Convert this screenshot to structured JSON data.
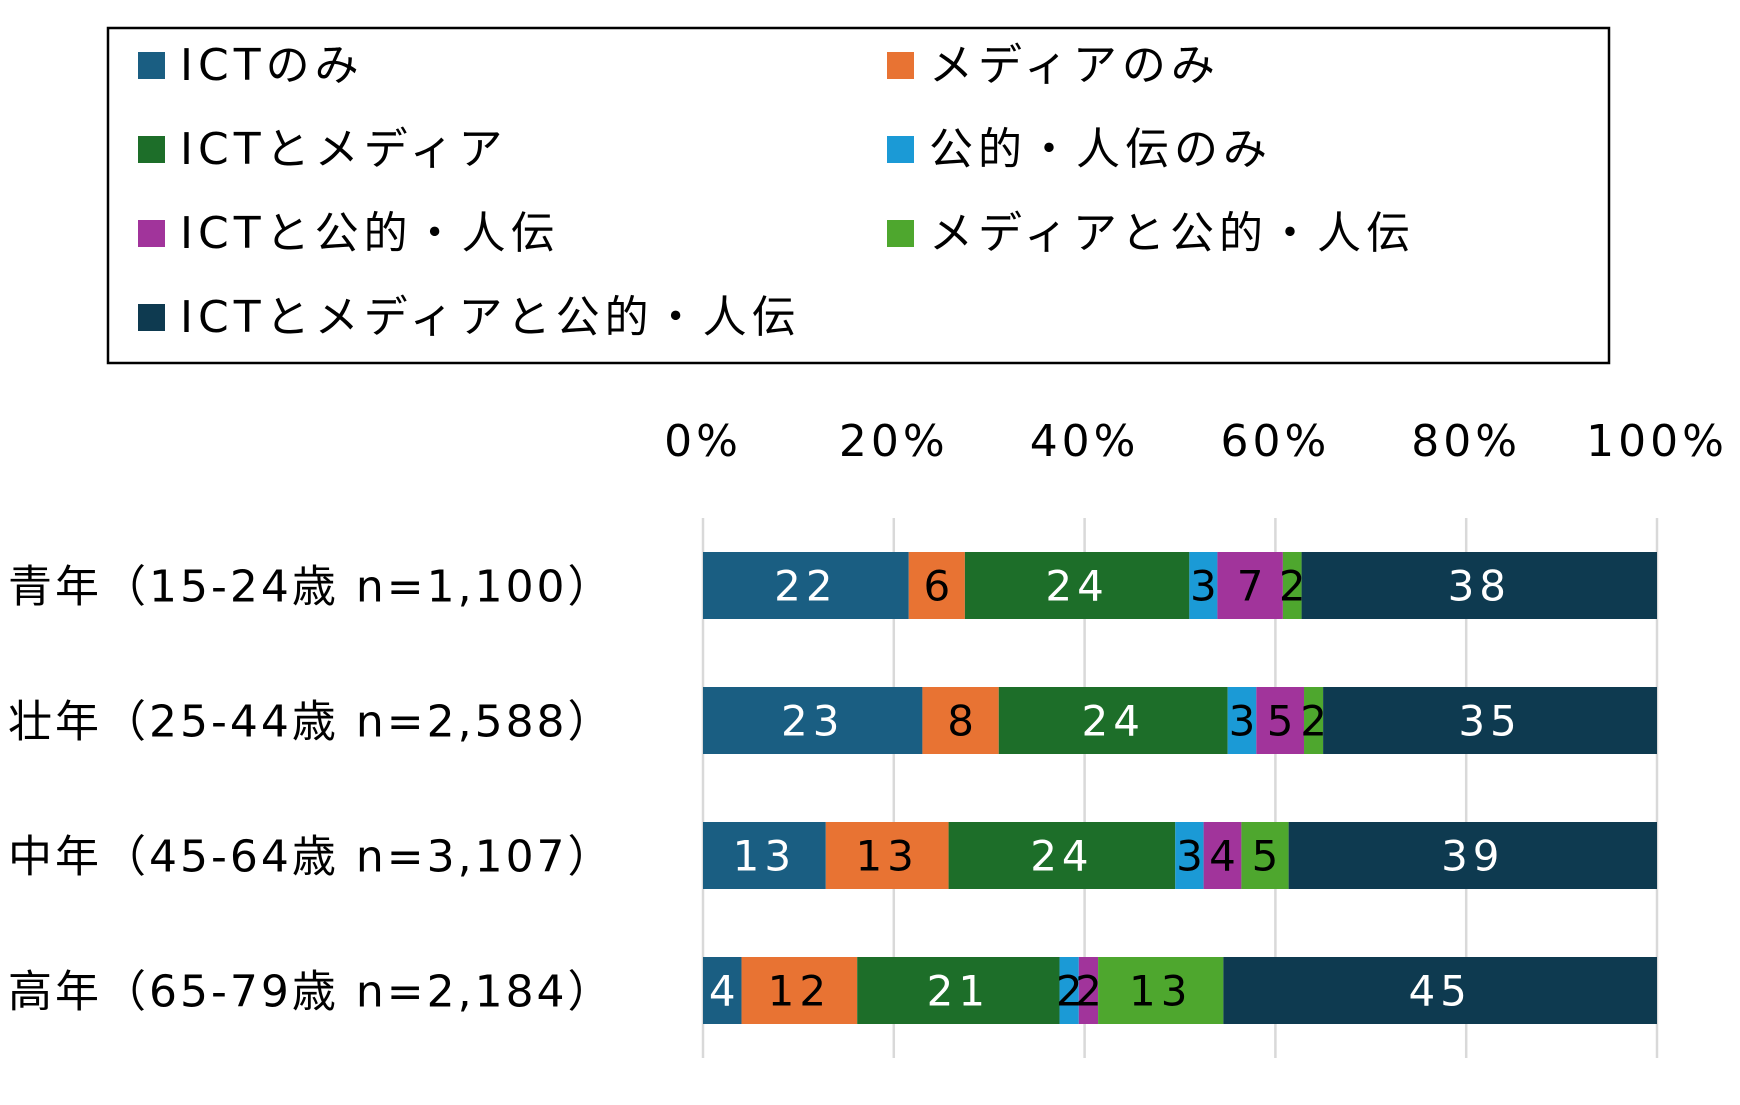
{
  "chart_data": {
    "type": "bar",
    "orientation": "horizontal",
    "stacked": "percent",
    "title": "",
    "xlabel": "",
    "ylabel": "",
    "xlim": [
      0,
      100
    ],
    "x_tick_labels": [
      "0%",
      "20%",
      "40%",
      "60%",
      "80%",
      "100%"
    ],
    "grid": true,
    "legend_position": "top",
    "categories": [
      "青年（15-24歳 n=1,100）",
      "壮年（25-44歳 n=2,588）",
      "中年（45-64歳 n=3,107）",
      "高年（65-79歳 n=2,184）"
    ],
    "series": [
      {
        "name": "ICTのみ",
        "color": "#1a5e82",
        "label_color": "#ffffff",
        "values": [
          22,
          23,
          13,
          4
        ]
      },
      {
        "name": "メディアのみ",
        "color": "#e87333",
        "label_color": "#000000",
        "values": [
          6,
          8,
          13,
          12
        ]
      },
      {
        "name": "ICTとメディア",
        "color": "#1d6e29",
        "label_color": "#ffffff",
        "values": [
          24,
          24,
          24,
          21
        ]
      },
      {
        "name": "公的・人伝のみ",
        "color": "#1b9ad6",
        "label_color": "#000000",
        "values": [
          3,
          3,
          3,
          2
        ]
      },
      {
        "name": "ICTと公的・人伝",
        "color": "#a1349b",
        "label_color": "#000000",
        "values": [
          7,
          5,
          4,
          2
        ]
      },
      {
        "name": "メディアと公的・人伝",
        "color": "#4ea72e",
        "label_color": "#000000",
        "values": [
          2,
          2,
          5,
          13
        ]
      },
      {
        "name": "ICTとメディアと公的・人伝",
        "color": "#0e3a50",
        "label_color": "#ffffff",
        "values": [
          38,
          35,
          39,
          45
        ]
      }
    ]
  }
}
